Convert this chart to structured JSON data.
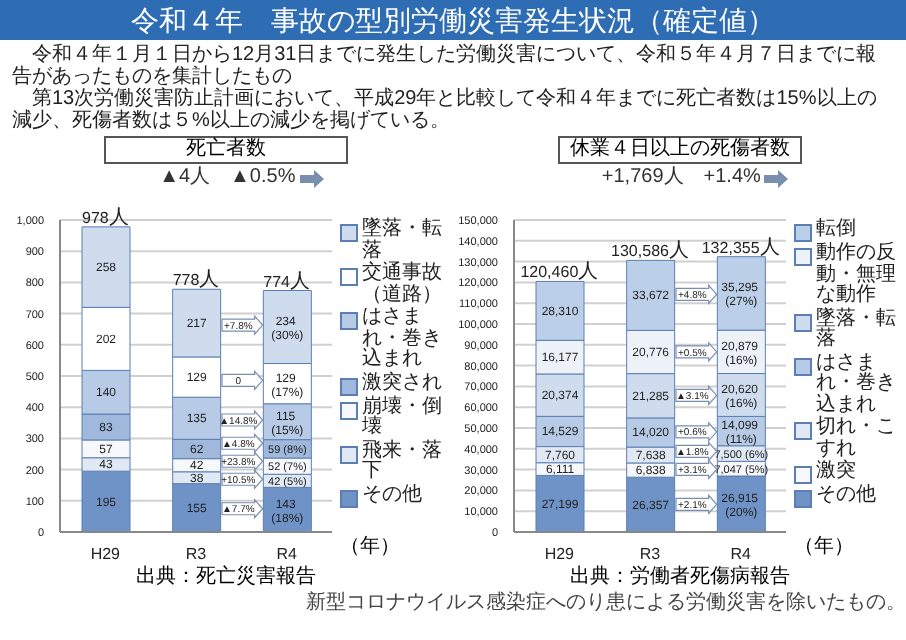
{
  "chart_data": [
    {
      "type": "other",
      "title": "令和４年　事故の型別労働災害発生状況（確定値）",
      "annotations": [
        "令和４年１月１日から12月31日までに発生した労働災害について、令和５年４月７日までに報告があったものを集計したもの",
        "第13次労働災害防止計画において、平成29年と比較して令和４年までに死亡者数は15%以上の減少、死傷者数は５%以上の減少を掲げている。"
      ]
    },
    {
      "type": "bar",
      "title": "死亡者数",
      "xlabel": "（年）",
      "stacked": true,
      "categories": [
        "H29",
        "R3",
        "R4"
      ],
      "ylim": [
        0,
        1000
      ],
      "yticks": [
        0,
        100,
        200,
        300,
        400,
        500,
        600,
        700,
        800,
        900,
        {
          "value": 1000,
          "label": "1,000"
        }
      ],
      "grid": "y",
      "legend": "right",
      "totals": [
        "978人",
        "778人",
        "774人"
      ],
      "series": [
        {
          "name": "その他",
          "color": "#6f93c6",
          "values": [
            195,
            155,
            143
          ],
          "value_labels": [
            "195",
            "155",
            "143 (18%)"
          ]
        },
        {
          "name": "飛来・落下",
          "color": "#dfe8f3",
          "values": [
            43,
            38,
            42
          ],
          "value_labels": [
            "43",
            "38",
            "42 (5%)"
          ]
        },
        {
          "name": "崩壊・倒壊",
          "color": "#f6f8fc",
          "values": [
            57,
            42,
            52
          ],
          "value_labels": [
            "57",
            "42",
            "52 (7%)"
          ]
        },
        {
          "name": "激突され",
          "color": "#9fb8dc",
          "values": [
            83,
            62,
            59
          ],
          "value_labels": [
            "83",
            "62",
            "59 (8%)"
          ]
        },
        {
          "name": "はさまれ・巻き込まれ",
          "color": "#b7cbe6",
          "values": [
            140,
            135,
            115
          ],
          "value_labels": [
            "140",
            "135",
            "115 (15%)"
          ]
        },
        {
          "name": "交通事故（道路）",
          "color": "#ffffff",
          "values": [
            202,
            129,
            129
          ],
          "value_labels": [
            "202",
            "129",
            "129 (17%)"
          ]
        },
        {
          "name": "墜落・転落",
          "color": "#cfdcee",
          "values": [
            258,
            217,
            234
          ],
          "value_labels": [
            "258",
            "217",
            "234 (30%)"
          ]
        }
      ],
      "annotations": [
        "▲7.7%",
        "+10.5%",
        "+23.8%",
        "▲4.8%",
        "▲14.8%",
        "0",
        "+7.8%",
        "▲4人　▲0.5%",
        "出典：死亡災害報告"
      ]
    },
    {
      "type": "bar",
      "title": "休業４日以上の死傷者数",
      "xlabel": "（年）",
      "stacked": true,
      "categories": [
        "H29",
        "R3",
        "R4"
      ],
      "ylim": [
        0,
        150000
      ],
      "yticks": [
        0,
        {
          "value": 10000,
          "label": "10,000"
        },
        {
          "value": 20000,
          "label": "20,000"
        },
        {
          "value": 30000,
          "label": "30,000"
        },
        {
          "value": 40000,
          "label": "40,000"
        },
        {
          "value": 50000,
          "label": "50,000"
        },
        {
          "value": 60000,
          "label": "60,000"
        },
        {
          "value": 70000,
          "label": "70,000"
        },
        {
          "value": 80000,
          "label": "80,000"
        },
        {
          "value": 90000,
          "label": "90,000"
        },
        {
          "value": 100000,
          "label": "100,000"
        },
        {
          "value": 110000,
          "label": "110,000"
        },
        {
          "value": 120000,
          "label": "120,000"
        },
        {
          "value": 130000,
          "label": "130,000"
        },
        {
          "value": 140000,
          "label": "140,000"
        },
        {
          "value": 150000,
          "label": "150,000"
        }
      ],
      "grid": "y",
      "legend": "right",
      "totals": [
        "120,460人",
        "130,586人",
        "132,355人"
      ],
      "series": [
        {
          "name": "その他",
          "color": "#6f93c6",
          "values": [
            27199,
            26357,
            26915
          ],
          "value_labels": [
            "27,199",
            "26,357",
            "26,915 (20%)"
          ]
        },
        {
          "name": "激突",
          "color": "#f6f8fc",
          "values": [
            6111,
            6838,
            7047
          ],
          "value_labels": [
            "6,111",
            "6,838",
            "7,047 (5%)"
          ]
        },
        {
          "name": "切れ・こすれ",
          "color": "#dfe8f3",
          "values": [
            7760,
            7638,
            7500
          ],
          "value_labels": [
            "7,760",
            "7,638",
            "7,500 (6%)"
          ]
        },
        {
          "name": "はさまれ・巻き込まれ",
          "color": "#b7cbe6",
          "values": [
            14529,
            14020,
            14099
          ],
          "value_labels": [
            "14,529",
            "14,020",
            "14,099 (11%)"
          ]
        },
        {
          "name": "墜落・転落",
          "color": "#cfdcee",
          "values": [
            20374,
            21285,
            20620
          ],
          "value_labels": [
            "20,374",
            "21,285",
            "20,620 (16%)"
          ]
        },
        {
          "name": "動作の反動・無理な動作",
          "color": "#edf2f9",
          "values": [
            16177,
            20776,
            20879
          ],
          "value_labels": [
            "16,177",
            "20,776",
            "20,879 (16%)"
          ]
        },
        {
          "name": "転倒",
          "color": "#bccfe8",
          "values": [
            28310,
            33672,
            35295
          ],
          "value_labels": [
            "28,310",
            "33,672",
            "35,295 (27%)"
          ]
        }
      ],
      "annotations": [
        "+2.1%",
        "+3.1%",
        "▲1.8%",
        "+0.6%",
        "▲3.1%",
        "+0.5%",
        "+4.8%",
        "+1,769人　+1.4%",
        "出典：労働者死傷病報告",
        "新型コロナウイルス感染症へのり患による労働災害を除いたもの。"
      ]
    }
  ]
}
